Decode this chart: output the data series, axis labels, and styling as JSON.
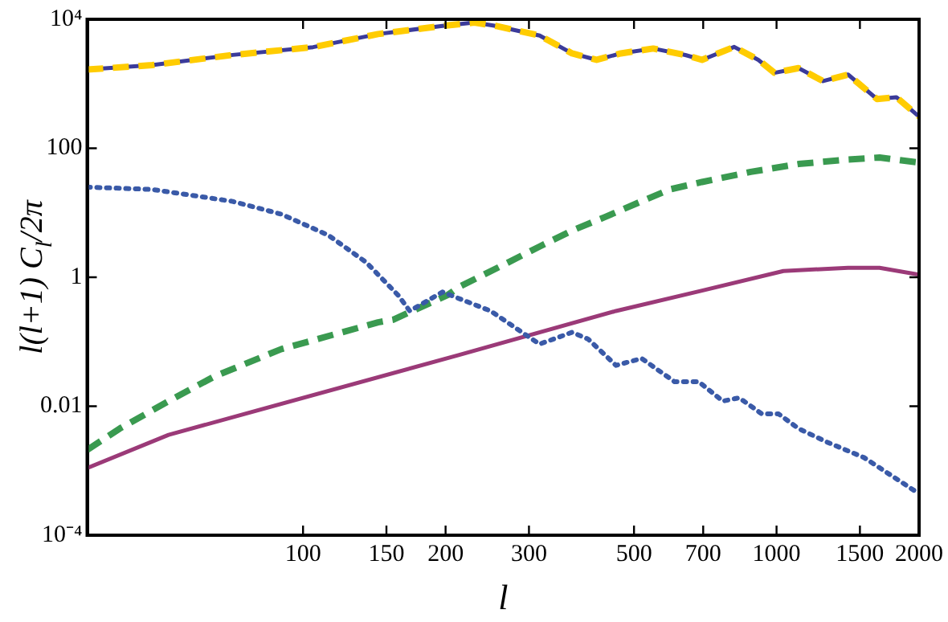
{
  "chart_data": {
    "type": "line",
    "xlabel": "l",
    "ylabel": "l(l+1) C$_{l}$/2π",
    "log": "xy",
    "grid": false,
    "legend": false,
    "xlim": [
      35,
      2000
    ],
    "xticks": [
      100,
      150,
      200,
      300,
      500,
      700,
      1000,
      1500,
      2000
    ],
    "ylim": [
      0.0001,
      10000
    ],
    "yticks": [
      {
        "value": 0.0001,
        "label": "10⁻⁴"
      },
      0.01,
      1,
      100,
      {
        "value": 10000,
        "label": "10⁴"
      }
    ],
    "series": [
      {
        "color": "#3b3b9a",
        "line_style": "solid",
        "x": [
          35,
          48,
          71,
          105,
          144,
          197,
          230,
          255,
          316,
          370,
          417,
          469,
          549,
          642,
          696,
          814,
          915,
          990,
          1113,
          1254,
          1416,
          1630,
          1791,
          2000
        ],
        "values": [
          1660,
          1950,
          2800,
          3700,
          5900,
          7900,
          8900,
          7900,
          5600,
          2960,
          2350,
          2960,
          3520,
          2790,
          2350,
          3730,
          2350,
          1480,
          1750,
          1100,
          1390,
          580,
          620,
          310
        ]
      },
      {
        "color": "#ffcc00",
        "line_style": "dashed",
        "x": [
          35,
          48,
          71,
          105,
          144,
          197,
          230,
          255,
          316,
          370,
          417,
          469,
          549,
          642,
          696,
          814,
          915,
          990,
          1113,
          1254,
          1416,
          1630,
          1791,
          2000
        ],
        "values": [
          1660,
          1950,
          2800,
          3700,
          5900,
          7900,
          8900,
          7900,
          5600,
          2960,
          2350,
          2960,
          3520,
          2790,
          2350,
          3730,
          2350,
          1480,
          1750,
          1100,
          1390,
          580,
          620,
          310
        ]
      },
      {
        "color": "#3a9a50",
        "line_style": "dashed",
        "x": [
          35,
          41,
          52,
          65,
          90,
          144,
          155,
          202,
          213,
          270,
          316,
          370,
          433,
          507,
          595,
          696,
          882,
          1113,
          1416,
          1650,
          2000
        ],
        "values": [
          0.0021,
          0.0045,
          0.012,
          0.029,
          0.077,
          0.2,
          0.22,
          0.53,
          0.7,
          1.67,
          3,
          5.3,
          8.5,
          14,
          23,
          30,
          43,
          57,
          67,
          72,
          60
        ]
      },
      {
        "color": "#9b3a78",
        "line_style": "solid",
        "x": [
          35,
          52,
          213,
          458,
          696,
          1034,
          1416,
          1650,
          2000
        ],
        "values": [
          0.0011,
          0.0036,
          0.062,
          0.3,
          0.62,
          1.25,
          1.4,
          1.4,
          1.1
        ]
      },
      {
        "color": "#3a5aa8",
        "line_style": "dotted",
        "x": [
          35,
          48,
          71,
          90,
          113,
          136,
          159,
          168,
          197,
          249,
          299,
          316,
          370,
          400,
          458,
          519,
          609,
          685,
          770,
          834,
          931,
          1010,
          1113,
          1275,
          1530,
          2000
        ],
        "values": [
          25,
          23,
          15,
          9.5,
          4.5,
          1.7,
          0.52,
          0.3,
          0.59,
          0.3,
          0.12,
          0.092,
          0.14,
          0.11,
          0.043,
          0.055,
          0.024,
          0.024,
          0.012,
          0.0135,
          0.0076,
          0.0076,
          0.0045,
          0.0028,
          0.0016,
          0.00044
        ]
      }
    ]
  }
}
